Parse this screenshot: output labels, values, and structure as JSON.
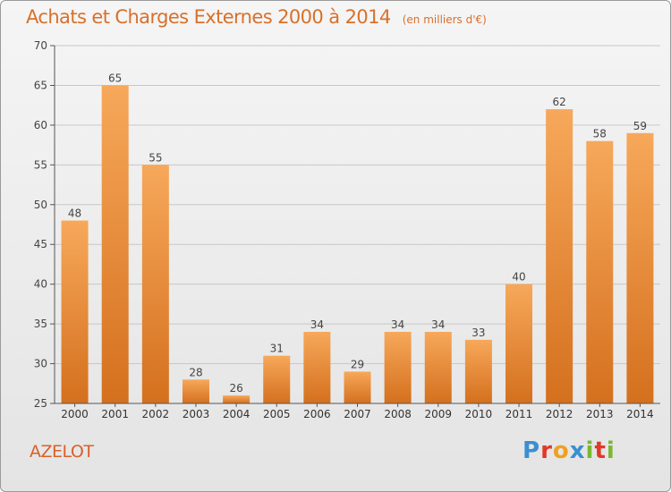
{
  "header": {
    "title": "Achats et Charges Externes 2000 à 2014",
    "unit": "(en milliers d'€)"
  },
  "footer": {
    "commune": "AZELOT",
    "logo_letters": [
      "P",
      "r",
      "o",
      "x",
      "i",
      "t",
      "i"
    ]
  },
  "colors": {
    "bar_top": "#f7a85a",
    "bar_bottom": "#d4701e",
    "title": "#d8702a",
    "grid": "#c8c8c8"
  },
  "chart_data": {
    "type": "bar",
    "categories": [
      "2000",
      "2001",
      "2002",
      "2003",
      "2004",
      "2005",
      "2006",
      "2007",
      "2008",
      "2009",
      "2010",
      "2011",
      "2012",
      "2013",
      "2014"
    ],
    "values": [
      48,
      65,
      55,
      28,
      26,
      31,
      34,
      29,
      34,
      34,
      33,
      40,
      62,
      58,
      59
    ],
    "ylim": [
      25,
      70
    ],
    "yticks": [
      25,
      30,
      35,
      40,
      45,
      50,
      55,
      60,
      65,
      70
    ],
    "grid": true,
    "data_labels": true
  }
}
